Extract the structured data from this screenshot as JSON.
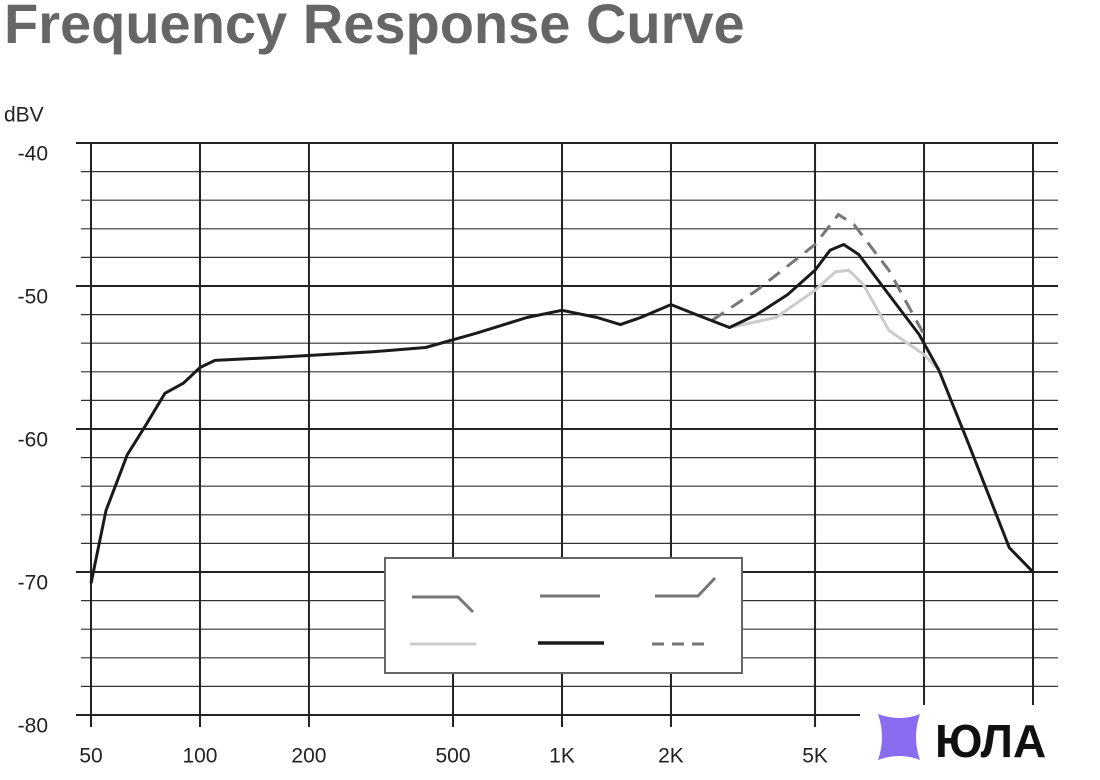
{
  "chart_data": {
    "type": "line",
    "title": "Frequency Response Curve",
    "y_label": "dBV",
    "watermark": "ЮЛА",
    "log_x": true,
    "xlim": [
      50,
      20000
    ],
    "xticks": [
      50,
      100,
      200,
      500,
      {
        "value": 1000,
        "label": "1K"
      },
      {
        "value": 2000,
        "label": "2K"
      },
      {
        "value": 5000,
        "label": "5K"
      }
    ],
    "minor_xticks": [
      10000,
      20000
    ],
    "ylim": [
      -80,
      -40
    ],
    "yticks": [
      -80,
      -70,
      -60,
      -50,
      -40
    ],
    "minor_yticks": [
      -78,
      -76,
      -74,
      -72,
      -68,
      -66,
      -64,
      -62,
      -58,
      -56,
      -54,
      -52,
      -48,
      -46,
      -44,
      -42
    ],
    "grid": true,
    "series": [
      {
        "color": "#cccccc",
        "dash": false,
        "x": [
          2900,
          3900,
          5000,
          5700,
          6200,
          6800,
          8000,
          10000,
          11000
        ],
        "values": [
          -52.9,
          -52.2,
          -50.3,
          -49,
          -48.9,
          -49.9,
          -53.1,
          -54.8,
          -55.9
        ]
      },
      {
        "color": "#777777",
        "dash": true,
        "x": [
          2600,
          3450,
          5000,
          5800,
          6400,
          8000,
          10000
        ],
        "values": [
          -52.4,
          -50.3,
          -47.1,
          -45,
          -45.7,
          -48.9,
          -53.4
        ]
      },
      {
        "color": "#1a1a1a",
        "dash": false,
        "x": [
          50,
          55,
          63,
          71,
          80,
          90,
          100,
          110,
          160,
          300,
          420,
          580,
          800,
          1000,
          1250,
          1450,
          1650,
          2000,
          2350,
          2900,
          3450,
          4200,
          5000,
          5500,
          6000,
          6600,
          8000,
          9700,
          11000,
          13300,
          17200,
          20000
        ],
        "values": [
          -70.8,
          -65.7,
          -61.8,
          -59.7,
          -57.5,
          -56.8,
          -55.7,
          -55.2,
          -55,
          -54.6,
          -54.3,
          -53.3,
          -52.2,
          -51.7,
          -52.2,
          -52.7,
          -52.2,
          -51.3,
          -52,
          -52.9,
          -52,
          -50.6,
          -48.9,
          -47.5,
          -47.1,
          -47.8,
          -50.6,
          -53.4,
          -55.9,
          -61.1,
          -68.3,
          -70
        ]
      }
    ]
  }
}
